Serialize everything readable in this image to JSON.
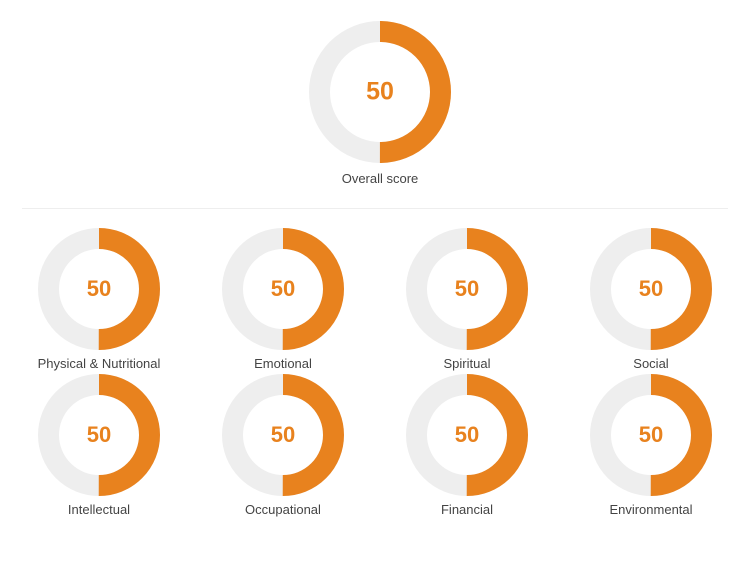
{
  "colors": {
    "accent": "#e8821e",
    "track": "#eeeeee"
  },
  "overall": {
    "value": "50",
    "fraction": 0.5,
    "label": "Overall score"
  },
  "categories": [
    {
      "label": "Physical & Nutritional",
      "value": "50",
      "fraction": 0.5
    },
    {
      "label": "Emotional",
      "value": "50",
      "fraction": 0.5
    },
    {
      "label": "Spiritual",
      "value": "50",
      "fraction": 0.5
    },
    {
      "label": "Social",
      "value": "50",
      "fraction": 0.5
    },
    {
      "label": "Intellectual",
      "value": "50",
      "fraction": 0.5
    },
    {
      "label": "Occupational",
      "value": "50",
      "fraction": 0.5
    },
    {
      "label": "Financial",
      "value": "50",
      "fraction": 0.5
    },
    {
      "label": "Environmental",
      "value": "50",
      "fraction": 0.5
    }
  ]
}
